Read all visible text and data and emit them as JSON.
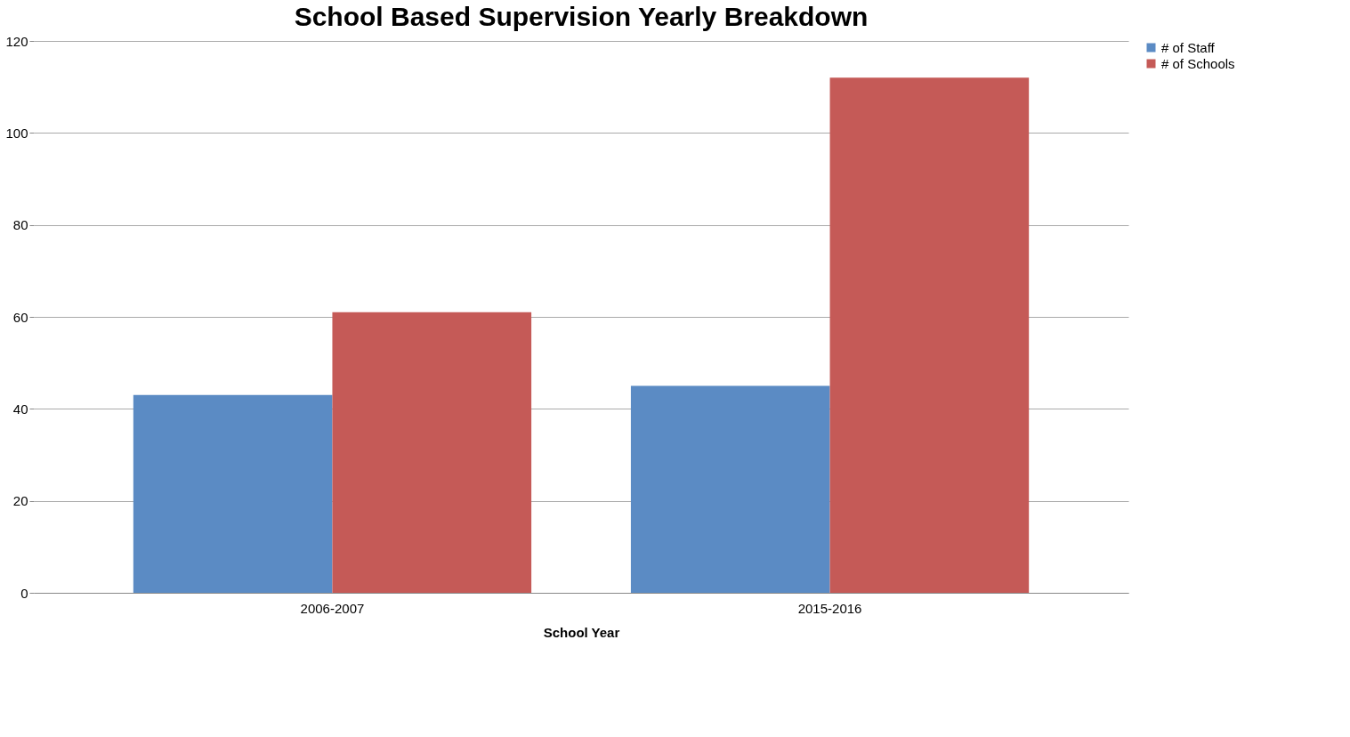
{
  "chart_data": {
    "type": "bar",
    "title": "School Based Supervision Yearly Breakdown",
    "xlabel": "School Year",
    "categories": [
      "2006-2007",
      "2015-2016"
    ],
    "series": [
      {
        "name": "# of Staff",
        "color": "#5b8bc4",
        "values": [
          43,
          45
        ]
      },
      {
        "name": "# of Schools",
        "color": "#c55a57",
        "values": [
          61,
          112
        ]
      }
    ],
    "ylim": [
      0,
      120
    ],
    "yticks": [
      0,
      20,
      40,
      60,
      80,
      100,
      120
    ],
    "grid": "y",
    "legend": "right"
  }
}
